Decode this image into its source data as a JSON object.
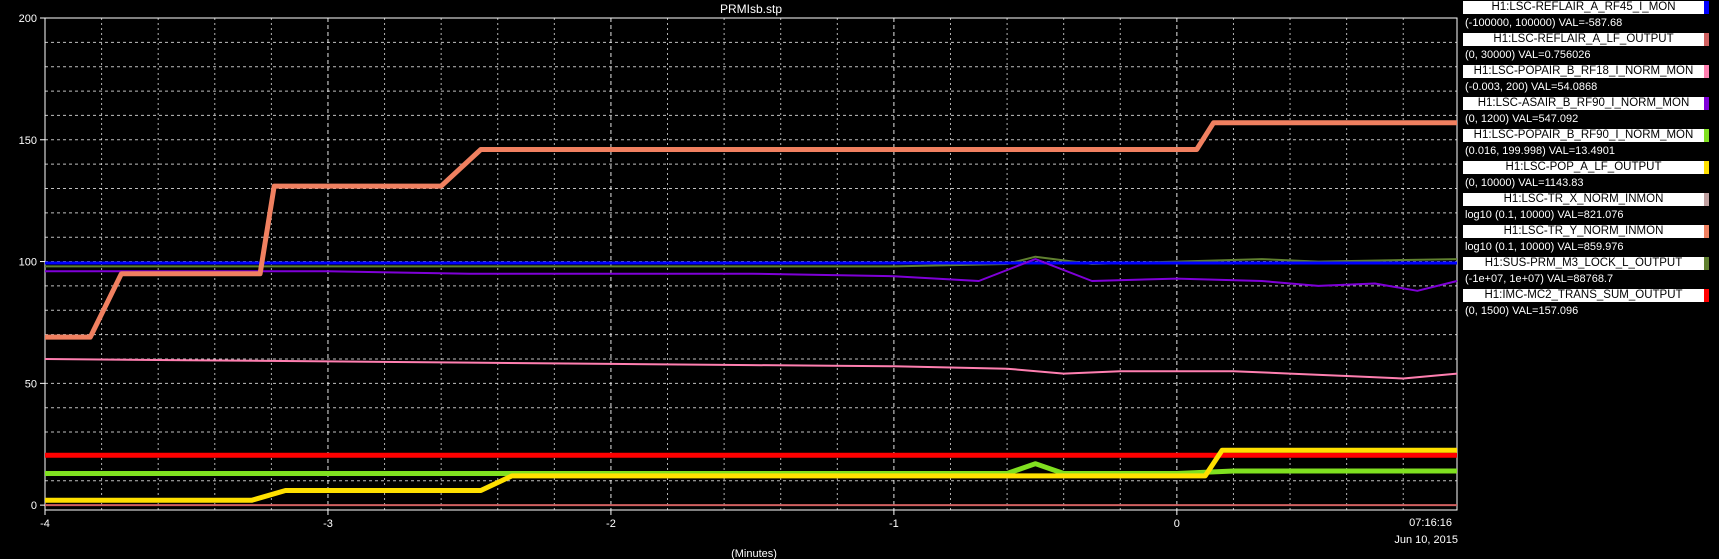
{
  "chart_data": {
    "type": "line",
    "title": "PRMIsb.stp",
    "xlabel": "(Minutes)",
    "ylabel": "",
    "xlim": [
      -4,
      0.99
    ],
    "ylim": [
      -2,
      200
    ],
    "xticks": [
      -4,
      -3,
      -2,
      -1,
      0
    ],
    "yticks": [
      0,
      50,
      100,
      150,
      200
    ],
    "xtick_labels": [
      "-4",
      "-3",
      "-2",
      "-1",
      "0"
    ],
    "ytick_labels": [
      "0",
      "50",
      "100",
      "150",
      "200"
    ],
    "grid": true,
    "timestamp_time": "07:16:16",
    "timestamp_date": "Jun 10, 2015",
    "legend_position": "right",
    "series": [
      {
        "name": "H1:LSC-REFLAIR_A_RF45_I_MON",
        "range": "(-100000, 100000) VAL=-587.68",
        "color": "#0000ff",
        "x": [
          -4,
          0.99
        ],
        "y": [
          99.4,
          99.4
        ]
      },
      {
        "name": "H1:LSC-REFLAIR_A_LF_OUTPUT",
        "range": "(0, 30000) VAL=0.756026",
        "color": "#d06060",
        "x": [
          -4,
          0.99
        ],
        "y": [
          0.0,
          0.0
        ]
      },
      {
        "name": "H1:LSC-POPAIR_B_RF18_I_NORM_MON",
        "range": "(-0.003, 200) VAL=54.0868",
        "color": "#ff7fb0",
        "x": [
          -4,
          -3.5,
          -3,
          -2.5,
          -2,
          -1.5,
          -1,
          -0.6,
          -0.4,
          -0.2,
          0,
          0.2,
          0.4,
          0.6,
          0.8,
          0.99
        ],
        "y": [
          60,
          59.5,
          59,
          58.5,
          58,
          57.5,
          57,
          56,
          54,
          55,
          55,
          55,
          54,
          53,
          52,
          54
        ]
      },
      {
        "name": "H1:LSC-ASAIR_B_RF90_I_NORM_MON",
        "range": "(0, 1200) VAL=547.092",
        "color": "#7f00d8",
        "x": [
          -4,
          -3.5,
          -3,
          -2.5,
          -2,
          -1.5,
          -1,
          -0.7,
          -0.5,
          -0.3,
          0,
          0.3,
          0.5,
          0.7,
          0.85,
          0.99
        ],
        "y": [
          96,
          96,
          96,
          95,
          95,
          95,
          94,
          92,
          101,
          92,
          93,
          92,
          90,
          91,
          88,
          92
        ]
      },
      {
        "name": "H1:LSC-POPAIR_B_RF90_I_NORM_MON",
        "range": "(0.016, 199.998) VAL=13.4901",
        "color": "#80e020",
        "x": [
          -4,
          -3.3,
          -2.5,
          -1,
          -0.6,
          -0.5,
          -0.4,
          0,
          0.2,
          0.5,
          0.99
        ],
        "y": [
          13,
          13,
          13,
          13,
          13,
          17,
          13,
          13,
          14,
          14,
          14
        ]
      },
      {
        "name": "H1:LSC-POP_A_LF_OUTPUT",
        "range": "(0, 10000) VAL=1143.83",
        "color": "#ffe000",
        "x": [
          -4,
          -3.27,
          -3.15,
          -2.46,
          -2.35,
          0.1,
          0.16,
          0.99
        ],
        "y": [
          2,
          2,
          6,
          6,
          12,
          12,
          22.5,
          22.5
        ]
      },
      {
        "name": "H1:LSC-TR_X_NORM_INMON",
        "range": "log10 (0.1, 10000) VAL=821.076",
        "color": "#c0a0a0",
        "x": [
          -4,
          -3.84,
          -3.73,
          -3.24,
          -3.19,
          -2.6,
          -2.46,
          0.07,
          0.13,
          0.99
        ],
        "y": [
          69,
          69,
          95,
          95,
          131,
          131,
          146,
          146,
          157,
          157
        ]
      },
      {
        "name": "H1:LSC-TR_Y_NORM_INMON",
        "range": "log10 (0.1, 10000) VAL=859.976",
        "color": "#f08060",
        "x": [
          -4,
          -3.84,
          -3.73,
          -3.24,
          -3.19,
          -2.6,
          -2.46,
          0.07,
          0.13,
          0.99
        ],
        "y": [
          69,
          69,
          95,
          95,
          131,
          131,
          146,
          146,
          157,
          157
        ]
      },
      {
        "name": "H1:SUS-PRM_M3_LOCK_L_OUTPUT",
        "range": "(-1e+07, 1e+07) VAL=88768.7",
        "color": "#608030",
        "x": [
          -4,
          -1,
          -0.6,
          -0.5,
          -0.3,
          0,
          0.3,
          0.5,
          0.99
        ],
        "y": [
          98,
          98,
          99,
          102,
          99,
          100,
          101,
          100,
          101
        ]
      },
      {
        "name": "H1:IMC-MC2_TRANS_SUM_OUTPUT",
        "range": "(0, 1500) VAL=157.096",
        "color": "#ff0000",
        "x": [
          -4,
          0.99
        ],
        "y": [
          20.5,
          20.5
        ]
      }
    ]
  }
}
